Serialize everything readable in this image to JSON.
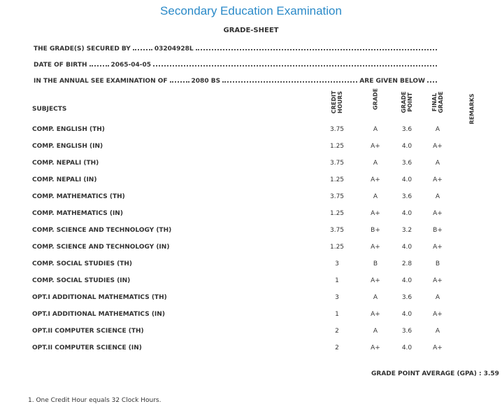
{
  "header": {
    "title": "Secondary Education Examination",
    "subtitle": "GRADE-SHEET"
  },
  "info": {
    "secured_by_label": "THE GRADE(S) SECURED BY",
    "secured_by": "03204928L",
    "dob_label": "DATE OF BIRTH",
    "dob": "2065-04-05",
    "exam_label": "IN THE ANNUAL SEE EXAMINATION OF",
    "exam": "2080 BS",
    "given_label": "ARE GIVEN BELOW"
  },
  "table": {
    "columns": [
      "SUBJECTS",
      "CREDIT HOURS",
      "GRADE",
      "GRADE POINT",
      "FINAL GRADE",
      "REMARKS"
    ],
    "rows": [
      [
        "COMP. ENGLISH (TH)",
        "3.75",
        "A",
        "3.6",
        "A"
      ],
      [
        "COMP. ENGLISH (IN)",
        "1.25",
        "A+",
        "4.0",
        "A+"
      ],
      [
        "COMP. NEPALI (TH)",
        "3.75",
        "A",
        "3.6",
        "A"
      ],
      [
        "COMP. NEPALI (IN)",
        "1.25",
        "A+",
        "4.0",
        "A+"
      ],
      [
        "COMP. MATHEMATICS (TH)",
        "3.75",
        "A",
        "3.6",
        "A"
      ],
      [
        "COMP. MATHEMATICS (IN)",
        "1.25",
        "A+",
        "4.0",
        "A+"
      ],
      [
        "COMP. SCIENCE AND TECHNOLOGY (TH)",
        "3.75",
        "B+",
        "3.2",
        "B+"
      ],
      [
        "COMP. SCIENCE AND TECHNOLOGY (IN)",
        "1.25",
        "A+",
        "4.0",
        "A+"
      ],
      [
        "COMP. SOCIAL STUDIES (TH)",
        "3",
        "B",
        "2.8",
        "B"
      ],
      [
        "COMP. SOCIAL STUDIES (IN)",
        "1",
        "A+",
        "4.0",
        "A+"
      ],
      [
        "OPT.I ADDITIONAL MATHEMATICS (TH)",
        "3",
        "A",
        "3.6",
        "A"
      ],
      [
        "OPT.I ADDITIONAL MATHEMATICS (IN)",
        "1",
        "A+",
        "4.0",
        "A+"
      ],
      [
        "OPT.II COMPUTER SCIENCE (TH)",
        "2",
        "A",
        "3.6",
        "A"
      ],
      [
        "OPT.II COMPUTER SCIENCE (IN)",
        "2",
        "A+",
        "4.0",
        "A+"
      ]
    ]
  },
  "gpa": {
    "label": "GRADE POINT AVERAGE (GPA) :",
    "value": "3.59"
  },
  "footnote": "1. One Credit Hour equals 32 Clock Hours."
}
